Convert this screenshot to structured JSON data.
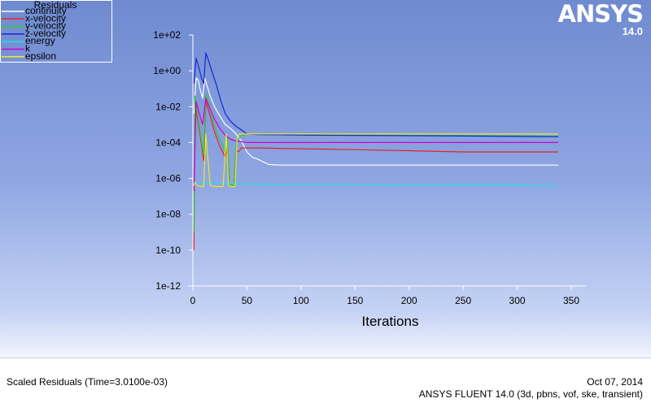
{
  "logo": {
    "brand": "ANSYS",
    "version": "14.0"
  },
  "footer": {
    "caption": "Scaled Residuals  (Time=3.0100e-03)",
    "date": "Oct 07, 2014",
    "solver": "ANSYS FLUENT 14.0 (3d, pbns, vof, ske, transient)"
  },
  "colors": {
    "background_top": "#6f8ad0",
    "background_bottom": "#ffffff",
    "axis": "#ffffff"
  },
  "chart_data": {
    "type": "line",
    "title": "",
    "xlabel": "Iterations",
    "ylabel": "",
    "y_scale": "log",
    "xlim": [
      0,
      350
    ],
    "ylim": [
      1e-12,
      100
    ],
    "x_ticks": [
      0,
      50,
      100,
      150,
      200,
      250,
      300,
      350
    ],
    "x_tick_labels": [
      "0",
      "50",
      "100",
      "150",
      "200",
      "250",
      "300",
      "350"
    ],
    "y_ticks": [
      1e-12,
      1e-10,
      1e-08,
      1e-06,
      0.0001,
      0.01,
      1,
      100
    ],
    "y_tick_labels": [
      "1e-12",
      "1e-10",
      "1e-08",
      "1e-06",
      "1e-04",
      "1e-02",
      "1e+00",
      "1e+02"
    ],
    "grid": false,
    "legend": {
      "title": "Residuals",
      "position": "top-left"
    },
    "series": [
      {
        "name": "continuity",
        "color": "#ffffff",
        "x": [
          1,
          3,
          5,
          7,
          9,
          11,
          13,
          16,
          20,
          25,
          30,
          35,
          40,
          45,
          50,
          55,
          60,
          70,
          80,
          100,
          150,
          200,
          250,
          300,
          338
        ],
        "y": [
          0.004,
          0.4,
          0.3,
          0.08,
          0.03,
          0.4,
          0.15,
          0.04,
          0.01,
          0.003,
          0.001,
          0.0006,
          0.0003,
          0.00012,
          3e-05,
          1.5e-05,
          1.2e-05,
          6e-06,
          5.5e-06,
          5.5e-06,
          5.5e-06,
          5.5e-06,
          5.5e-06,
          5.5e-06,
          5.5e-06
        ]
      },
      {
        "name": "x-velocity",
        "color": "#e8202a",
        "x": [
          1,
          2,
          4,
          7,
          10,
          12,
          16,
          20,
          25,
          30,
          32,
          34,
          36,
          38,
          40,
          42,
          45,
          50,
          60,
          100,
          150,
          200,
          250,
          300,
          338
        ],
        "y": [
          1e-10,
          0.02,
          0.003,
          0.0002,
          1e-05,
          0.02,
          0.003,
          0.0004,
          6e-05,
          1.5e-05,
          6e-05,
          4e-07,
          4e-07,
          4e-07,
          4e-05,
          3e-05,
          5e-05,
          5e-05,
          5e-05,
          4.5e-05,
          4e-05,
          3.5e-05,
          3e-05,
          3e-05,
          3e-05
        ]
      },
      {
        "name": "y-velocity",
        "color": "#32c832",
        "x": [
          1,
          2,
          4,
          7,
          10,
          12,
          16,
          20,
          25,
          30,
          32,
          34,
          36,
          38,
          40,
          42,
          45,
          50,
          60,
          100,
          150,
          200,
          250,
          300,
          338
        ],
        "y": [
          1e-09,
          0.04,
          0.005,
          0.0003,
          2e-05,
          0.05,
          0.008,
          0.0008,
          0.00015,
          3e-05,
          0.0002,
          4e-07,
          4e-07,
          4e-07,
          8e-05,
          0.00015,
          0.00025,
          0.0003,
          0.00028,
          0.00027,
          0.00026,
          0.00025,
          0.00024,
          0.00023,
          0.00022
        ]
      },
      {
        "name": "z-velocity",
        "color": "#1428d2",
        "x": [
          1,
          3,
          5,
          8,
          10,
          12,
          15,
          18,
          22,
          26,
          30,
          35,
          40,
          45,
          50,
          60,
          80,
          100,
          150,
          200,
          250,
          300,
          338
        ],
        "y": [
          0.2,
          5,
          2,
          0.4,
          0.2,
          10,
          3,
          0.8,
          0.15,
          0.02,
          0.004,
          0.0015,
          0.0008,
          0.0005,
          0.0003,
          0.00028,
          0.00027,
          0.00026,
          0.00025,
          0.00024,
          0.00023,
          0.00022,
          0.00021
        ]
      },
      {
        "name": "energy",
        "color": "#20e0e8",
        "x": [
          1,
          4,
          8,
          12,
          16,
          20,
          25,
          30,
          35,
          40,
          45,
          50,
          100,
          150,
          200,
          250,
          300,
          338
        ],
        "y": [
          5e-07,
          6e-07,
          6e-07,
          6e-07,
          6e-07,
          6e-07,
          5.5e-07,
          5.5e-07,
          5e-07,
          5e-07,
          5e-07,
          4.8e-07,
          4.5e-07,
          4.5e-07,
          4.2e-07,
          4e-07,
          4e-07,
          3.8e-07
        ]
      },
      {
        "name": "k",
        "color": "#d000d0",
        "x": [
          1,
          3,
          6,
          9,
          12,
          15,
          20,
          25,
          30,
          35,
          40,
          45,
          50,
          60,
          100,
          150,
          200,
          250,
          300,
          338
        ],
        "y": [
          2e-07,
          0.02,
          0.004,
          0.001,
          0.03,
          0.01,
          0.002,
          0.0006,
          0.00025,
          0.00015,
          0.00012,
          0.00011,
          0.0001,
          0.0001,
          0.0001,
          0.0001,
          0.0001,
          0.0001,
          0.0001,
          0.0001
        ]
      },
      {
        "name": "epsilon",
        "color": "#e8e830",
        "x": [
          1,
          2,
          4,
          7,
          10,
          12,
          16,
          20,
          24,
          28,
          31,
          33,
          35,
          37,
          39,
          41,
          43,
          46,
          50,
          60,
          100,
          150,
          200,
          250,
          300,
          338
        ],
        "y": [
          4e-07,
          6e-07,
          4e-07,
          3.5e-07,
          3.5e-07,
          0.0003,
          4e-07,
          3.5e-07,
          3.5e-07,
          3.5e-07,
          0.0003,
          4e-07,
          3.5e-07,
          3.5e-07,
          3.5e-07,
          0.0002,
          0.0003,
          0.0003,
          0.0003,
          0.0003,
          0.0003,
          0.0003,
          0.0003,
          0.0003,
          0.0003,
          0.0003
        ]
      }
    ]
  }
}
